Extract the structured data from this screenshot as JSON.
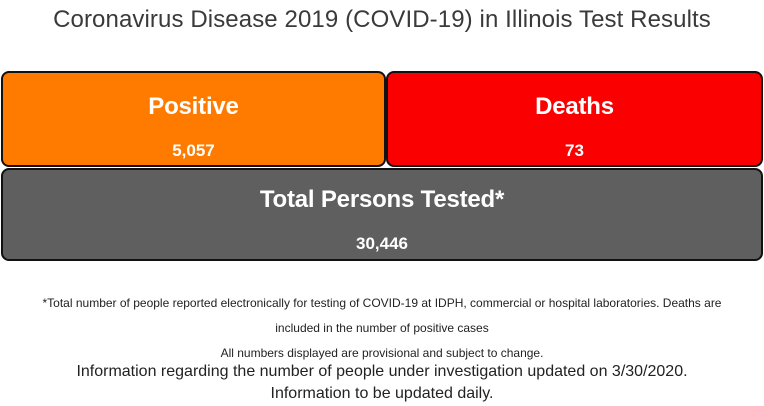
{
  "page": {
    "title": "Coronavirus Disease 2019 (COVID-19) in Illinois Test Results"
  },
  "stats": {
    "positive": {
      "label": "Positive",
      "value": "5,057",
      "color": "#ff7b00"
    },
    "deaths": {
      "label": "Deaths",
      "value": "73",
      "color": "#fb0000"
    },
    "tested": {
      "label": "Total Persons Tested*",
      "value": "30,446",
      "color": "#5f5f5f"
    }
  },
  "footnotes": {
    "line1": "*Total number of people reported electronically for testing of COVID-19 at IDPH, commercial or hospital laboratories. Deaths are",
    "line2": "included in the number of positive cases",
    "line3": "All numbers displayed are provisional and subject to change."
  },
  "info": {
    "line1": "Information regarding the number of people under investigation updated on 3/30/2020.",
    "line2": "Information to be updated daily."
  }
}
